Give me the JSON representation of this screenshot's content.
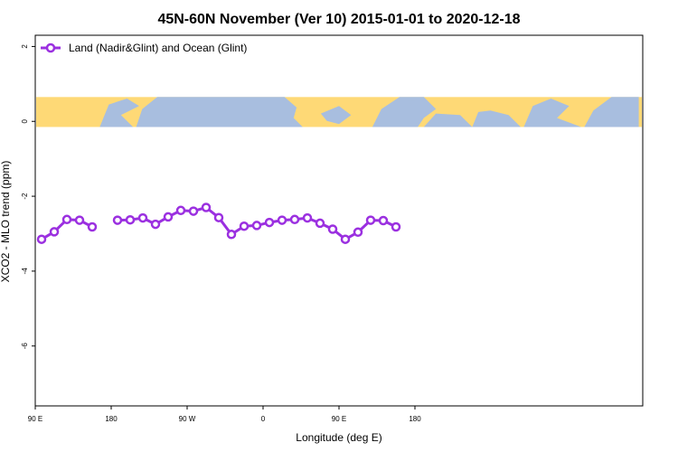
{
  "chart_data": {
    "type": "line",
    "title": "45N-60N November (Ver 10)   2015-01-01 to 2020-12-18",
    "xlabel": "Longitude (deg E)",
    "ylabel": "XCO2 - MLO trend (ppm)",
    "xlim": [
      90,
      450
    ],
    "ylim": [
      -7.6,
      2.3
    ],
    "x_ticks": [
      {
        "value": 90,
        "label": "90 E"
      },
      {
        "value": 180,
        "label": "180"
      },
      {
        "value": 270,
        "label": "90 W"
      },
      {
        "value": 360,
        "label": "0"
      },
      {
        "value": 450,
        "label": "90 E"
      },
      {
        "value": 540,
        "label": "180"
      }
    ],
    "y_ticks": [
      {
        "value": 2,
        "label": "2"
      },
      {
        "value": 0,
        "label": "0"
      },
      {
        "value": -2,
        "label": "-2"
      },
      {
        "value": -4,
        "label": "-4"
      },
      {
        "value": -6,
        "label": "-6"
      }
    ],
    "legend_position": "top-left",
    "grid": false,
    "map_strip": {
      "y_range": [
        -0.15,
        0.65
      ],
      "land_color": "#FED976",
      "ocean_color": "#A8BEDF"
    },
    "series": [
      {
        "name": "Land (Nadir&Glint) and Ocean (Glint)",
        "color": "#9B30E0",
        "points": [
          [
            97.5,
            -3.15
          ],
          [
            112.5,
            -2.95
          ],
          [
            127.5,
            -2.62
          ],
          [
            142.5,
            -2.64
          ],
          [
            157.5,
            -2.82
          ],
          null,
          [
            187.5,
            -2.64
          ],
          [
            202.5,
            -2.63
          ],
          [
            217.5,
            -2.58
          ],
          [
            232.5,
            -2.75
          ],
          [
            247.5,
            -2.55
          ],
          [
            262.5,
            -2.38
          ],
          [
            277.5,
            -2.4
          ],
          [
            292.5,
            -2.3
          ],
          [
            307.5,
            -2.57
          ],
          [
            322.5,
            -3.02
          ],
          [
            337.5,
            -2.8
          ],
          [
            352.5,
            -2.78
          ],
          [
            367.5,
            -2.7
          ],
          [
            382.5,
            -2.64
          ],
          [
            397.5,
            -2.62
          ],
          [
            412.5,
            -2.58
          ],
          [
            427.5,
            -2.72
          ],
          [
            442.5,
            -2.88
          ],
          [
            457.5,
            -3.15
          ],
          [
            472.5,
            -2.96
          ],
          [
            487.5,
            -2.64
          ],
          [
            502.5,
            -2.65
          ],
          [
            517.5,
            -2.82
          ]
        ]
      }
    ]
  }
}
